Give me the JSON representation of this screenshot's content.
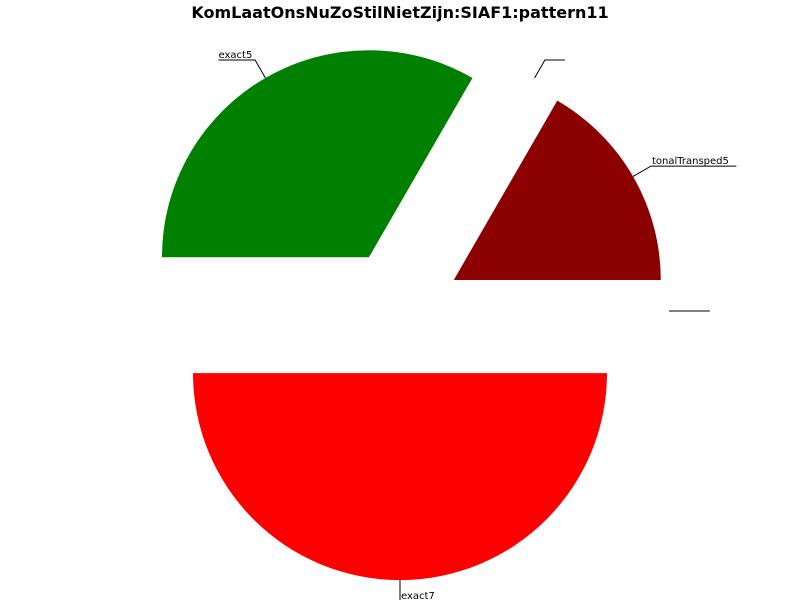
{
  "chart_data": {
    "type": "pie",
    "title": "KomLaatOnsNuZoStilNietZijn:SIAF1:pattern11",
    "slices": [
      {
        "label": "exact5",
        "value": 5,
        "color": "#008000",
        "explode": 0.3
      },
      {
        "label": "",
        "value": 0,
        "color": "#000000",
        "explode": 0.3
      },
      {
        "label": "tonalTransped5",
        "value": 2.5,
        "color": "#8b0000",
        "explode": 0.3
      },
      {
        "label": "",
        "value": 0,
        "color": "#000000",
        "explode": 0.3
      },
      {
        "label": "exact7",
        "value": 7.5,
        "color": "#ff0000",
        "explode": 0.3
      }
    ],
    "start_angle_deg": 180,
    "direction": "clockwise",
    "legend": "none"
  }
}
